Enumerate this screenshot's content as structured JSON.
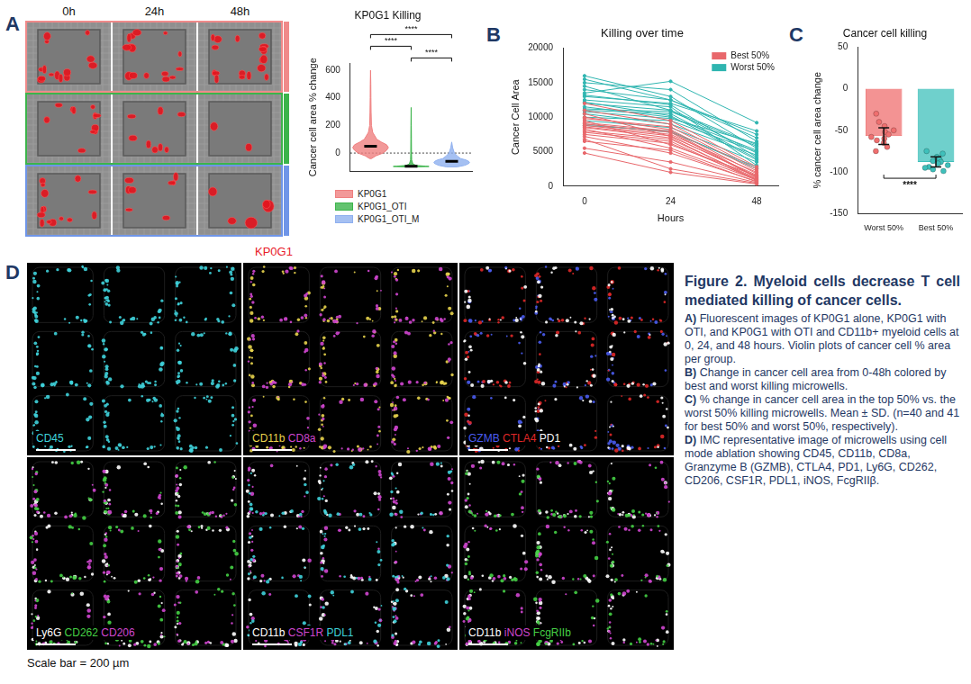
{
  "panel_A": {
    "letter": "A",
    "time_labels": [
      "0h",
      "24h",
      "48h"
    ],
    "row_colors": [
      "#f08a8a",
      "#3cb44b",
      "#6f95e8"
    ]
  },
  "chart_data": [
    {
      "type": "violin",
      "title": "KP0G1 Killing",
      "y_label": "Cancer cell area % change",
      "ylim": [
        -130,
        650
      ],
      "yticks": [
        0,
        200,
        400,
        600
      ],
      "grid": false,
      "tick_labels": "y",
      "legend": "bottom",
      "reference_line": 0,
      "series": [
        {
          "name": "KP0G1",
          "color": "#ef7f7f",
          "median": 50,
          "y": [
            -40,
            -20,
            0,
            20,
            40,
            60,
            80,
            100,
            150,
            200,
            300,
            400,
            500,
            600
          ],
          "density": [
            0.05,
            0.3,
            0.7,
            0.9,
            1.0,
            0.9,
            0.6,
            0.35,
            0.12,
            0.05,
            0.03,
            0.02,
            0.015,
            0
          ]
        },
        {
          "name": "KP0G1_OTI",
          "color": "#3cb44b",
          "median": -95,
          "y": [
            -100,
            -97,
            -95,
            -90,
            -80,
            -50,
            0,
            100,
            200,
            330
          ],
          "density": [
            0.3,
            1.0,
            0.8,
            0.3,
            0.1,
            0.03,
            0.02,
            0.015,
            0.01,
            0
          ]
        },
        {
          "name": "KP0G1_OTI_M",
          "color": "#8fb0ef",
          "median": -60,
          "y": [
            -100,
            -90,
            -80,
            -70,
            -60,
            -50,
            -40,
            -20,
            0,
            40,
            80
          ],
          "density": [
            0.3,
            0.7,
            0.9,
            1.0,
            0.95,
            0.8,
            0.5,
            0.3,
            0.15,
            0.05,
            0
          ]
        }
      ],
      "significance": [
        {
          "between": [
            0,
            2
          ],
          "label": "****"
        },
        {
          "between": [
            0,
            1
          ],
          "label": "****"
        },
        {
          "between": [
            1,
            2
          ],
          "label": "****"
        }
      ]
    },
    {
      "panel": "B",
      "type": "line",
      "title": "Killing over time",
      "x_label": "Hours",
      "y_label": "Cancer Cell Area",
      "x": [
        0,
        24,
        48
      ],
      "xlim": [
        -6,
        54
      ],
      "xticks": [
        0,
        24,
        48
      ],
      "ylim": [
        0,
        20000
      ],
      "yticks": [
        0,
        5000,
        10000,
        15000,
        20000
      ],
      "grid": false,
      "legend": "top-right",
      "marker": "circle",
      "series": [
        {
          "name": "Best 50%",
          "color": "#e8676b",
          "values": [
            [
              9000,
              7800,
              1200
            ],
            [
              8500,
              7000,
              900
            ],
            [
              10000,
              8200,
              1800
            ],
            [
              7800,
              6500,
              800
            ],
            [
              9500,
              6000,
              1500
            ],
            [
              6500,
              5200,
              600
            ],
            [
              8800,
              7500,
              2000
            ],
            [
              11000,
              9000,
              2500
            ],
            [
              7200,
              4800,
              700
            ],
            [
              9200,
              8000,
              1300
            ],
            [
              5500,
              3500,
              500
            ],
            [
              8000,
              6800,
              1100
            ],
            [
              10500,
              7200,
              1600
            ],
            [
              6800,
              2500,
              400
            ],
            [
              9800,
              8600,
              2200
            ],
            [
              7500,
              6200,
              1000
            ],
            [
              8300,
              5500,
              900
            ],
            [
              12000,
              9500,
              2800
            ],
            [
              8600,
              7300,
              1400
            ],
            [
              4800,
              2000,
              300
            ]
          ]
        },
        {
          "name": "Worst 50%",
          "color": "#2fb5b0",
          "values": [
            [
              12000,
              11000,
              6000
            ],
            [
              10000,
              9500,
              5000
            ],
            [
              14000,
              12500,
              7500
            ],
            [
              16000,
              13000,
              5500
            ],
            [
              11000,
              10500,
              4000
            ],
            [
              13000,
              12000,
              8000
            ],
            [
              9500,
              8500,
              3500
            ],
            [
              15000,
              14000,
              6500
            ],
            [
              10500,
              9000,
              4500
            ],
            [
              12500,
              11500,
              3000
            ],
            [
              11500,
              10000,
              5200
            ],
            [
              13500,
              15200,
              9200
            ],
            [
              9000,
              7800,
              2800
            ],
            [
              14500,
              11000,
              4800
            ],
            [
              10800,
              9800,
              6200
            ],
            [
              12200,
              10200,
              3800
            ],
            [
              8800,
              8000,
              2500
            ],
            [
              15500,
              12500,
              7000
            ],
            [
              11200,
              10800,
              5800
            ],
            [
              13200,
              11800,
              4200
            ]
          ]
        }
      ]
    },
    {
      "panel": "C",
      "type": "bar",
      "title": "Cancer cell killing",
      "y_label": "% cancer cell area change",
      "categories": [
        "Worst 50%",
        "Best 50%"
      ],
      "values": [
        -57,
        -88
      ],
      "errors": [
        10,
        6
      ],
      "colors": [
        "#ef6f6f",
        "#3fc0bb"
      ],
      "points": [
        [
          -30,
          -40,
          -45,
          -50,
          -52,
          -55,
          -58,
          -60,
          -62,
          -65,
          -70,
          -75
        ],
        [
          -75,
          -78,
          -82,
          -85,
          -87,
          -88,
          -90,
          -92,
          -94,
          -95,
          -97,
          -99
        ]
      ],
      "ylim": [
        -150,
        50
      ],
      "yticks": [
        -150,
        -100,
        -50,
        0,
        50
      ],
      "grid": false,
      "significance": {
        "between": [
          0,
          1
        ],
        "label": "****"
      }
    }
  ],
  "panel_D": {
    "letter": "D",
    "title": "KP0G1",
    "title_color": "#e8202a",
    "scale_bar": "Scale bar = 200 µm",
    "tiles": [
      {
        "markers": [
          {
            "text": "CD45",
            "color": "#3fd3dc"
          }
        ]
      },
      {
        "markers": [
          {
            "text": "CD11b",
            "color": "#e8d44d"
          },
          {
            "text": "CD8a",
            "color": "#d046d0"
          }
        ]
      },
      {
        "markers": [
          {
            "text": "GZMB",
            "color": "#4a5cf0"
          },
          {
            "text": "CTLA4",
            "color": "#e02828"
          },
          {
            "text": "PD1",
            "color": "#ffffff"
          }
        ]
      },
      {
        "markers": [
          {
            "text": "Ly6G",
            "color": "#ffffff"
          },
          {
            "text": "CD262",
            "color": "#45d045"
          },
          {
            "text": "CD206",
            "color": "#d046d0"
          }
        ]
      },
      {
        "markers": [
          {
            "text": "CD11b",
            "color": "#ffffff"
          },
          {
            "text": "CSF1R",
            "color": "#d046d0"
          },
          {
            "text": "PDL1",
            "color": "#3fd3dc"
          }
        ]
      },
      {
        "markers": [
          {
            "text": "CD11b",
            "color": "#ffffff"
          },
          {
            "text": "iNOS",
            "color": "#d046d0"
          },
          {
            "text": "FcgRIIb",
            "color": "#45d045"
          }
        ]
      }
    ]
  },
  "caption": {
    "title": "Figure 2. Myeloid cells decrease T cell mediated killing of cancer cells.",
    "items": [
      {
        "label": "A)",
        "text": "Fluorescent images of KP0G1 alone, KP0G1 with OTI, and KP0G1 with OTI and CD11b+ myeloid cells at 0, 24, and 48 hours. Violin plots of cancer cell % area per group."
      },
      {
        "label": "B)",
        "text": "Change in cancer cell area from 0-48h colored by best and worst killing microwells."
      },
      {
        "label": "C)",
        "text": "% change in cancer cell area in the top 50% vs. the worst 50% killing microwells. Mean ± SD. (n=40 and 41 for best 50% and worst 50%, respectively)."
      },
      {
        "label": "D)",
        "text": "IMC representative image of microwells using cell mode ablation showing CD45, CD11b, CD8a, Granzyme B (GZMB), CTLA4, PD1, Ly6G, CD262, CD206, CSF1R, PDL1, iNOS, FcgRIIβ."
      }
    ]
  }
}
